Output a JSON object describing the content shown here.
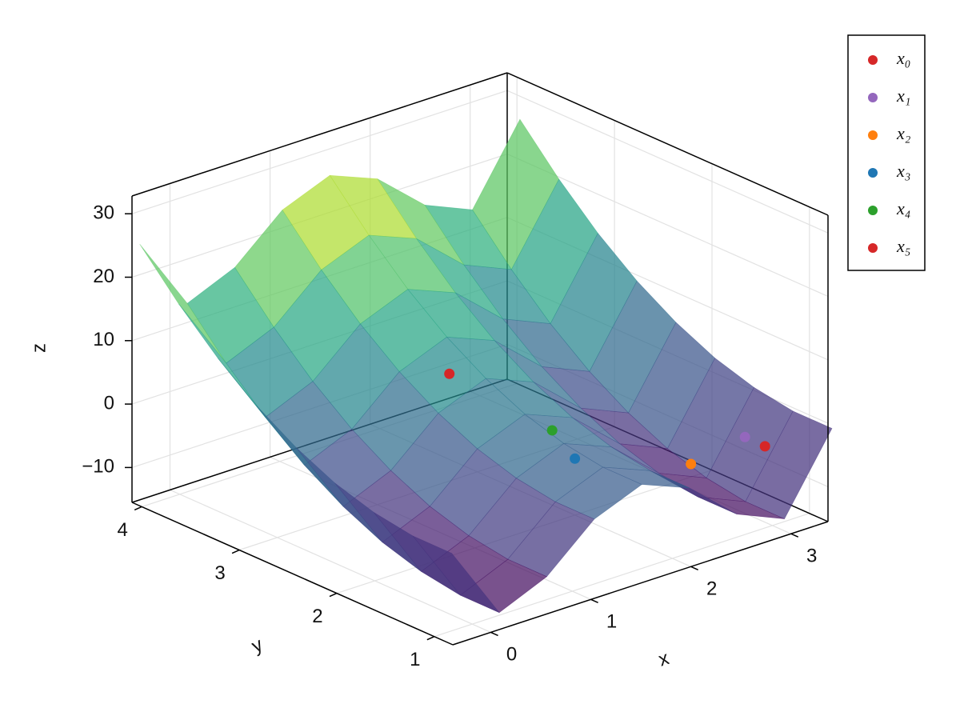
{
  "chart_data": {
    "type": "surface3d",
    "xlabel": "x",
    "ylabel": "y",
    "zlabel": "z",
    "xlim": [
      -0.38,
      3.37
    ],
    "ylim": [
      0.81,
      4.1
    ],
    "zlim": [
      -15.5,
      32.8
    ],
    "xticks": [
      0,
      1,
      2,
      3
    ],
    "yticks": [
      1,
      2,
      3,
      4
    ],
    "zticks": [
      {
        "value": -10,
        "label": "−10"
      },
      0,
      10,
      20,
      30
    ],
    "grid": true,
    "legend": "outside-right",
    "colormap": "viridis",
    "surface": {
      "x": [
        -0.4,
        0.075,
        0.55,
        1.025,
        1.5,
        1.975,
        2.45,
        2.925,
        3.4
      ],
      "y": [
        0.8,
        1.2,
        1.6,
        2.0,
        2.4,
        2.8,
        3.2,
        3.6,
        4.0
      ],
      "z": [
        [
          -0.9,
          -12.7,
          -9.5,
          -2.9,
          0.1,
          -2.9,
          -9.5,
          -12.7,
          -0.9
        ],
        [
          -0.9,
          -12.7,
          -9.5,
          -2.9,
          0.1,
          -2.9,
          -9.5,
          -12.7,
          -0.9
        ],
        [
          0.1,
          -11.7,
          -8.5,
          -1.9,
          1.1,
          -1.9,
          -8.5,
          -11.7,
          0.1
        ],
        [
          2.0,
          -9.8,
          -6.6,
          0.0,
          3.0,
          0.0,
          -6.6,
          -9.8,
          2.0
        ],
        [
          4.9,
          -6.9,
          -3.7,
          2.9,
          5.9,
          2.9,
          -3.7,
          -6.9,
          4.9
        ],
        [
          8.7,
          -3.1,
          0.1,
          6.7,
          9.7,
          6.7,
          0.1,
          -3.1,
          8.7
        ],
        [
          13.5,
          1.7,
          4.9,
          11.5,
          14.5,
          11.5,
          4.9,
          1.7,
          13.5
        ],
        [
          19.3,
          7.5,
          10.7,
          17.3,
          20.3,
          17.3,
          10.7,
          7.5,
          19.3
        ],
        [
          26.0,
          14.2,
          17.4,
          24.0,
          27.0,
          24.0,
          17.4,
          14.2,
          26.0
        ]
      ]
    },
    "series": [
      {
        "name": "x₀",
        "color": "#d62728",
        "x": [
          1.72
        ],
        "y": [
          3.0
        ],
        "z": [
          1.4
        ]
      },
      {
        "name": "x₁",
        "color": "#9467bd",
        "x": [
          2.92
        ],
        "y": [
          1.2
        ],
        "z": [
          -2.5
        ]
      },
      {
        "name": "x₂",
        "color": "#ff7f0e",
        "x": [
          2.77
        ],
        "y": [
          1.6
        ],
        "z": [
          -8.7
        ]
      },
      {
        "name": "x₃",
        "color": "#1f77b4",
        "x": [
          2.0
        ],
        "y": [
          2.0
        ],
        "z": [
          -6.6
        ]
      },
      {
        "name": "x₄",
        "color": "#2ca02c",
        "x": [
          2.26
        ],
        "y": [
          2.5
        ],
        "z": [
          -6.9
        ]
      },
      {
        "name": "x₅",
        "color": "#d62728",
        "x": [
          3.12
        ],
        "y": [
          1.2
        ],
        "z": [
          -5.0
        ]
      }
    ]
  }
}
